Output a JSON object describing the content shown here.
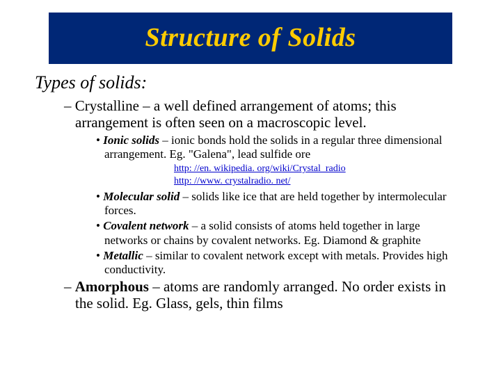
{
  "colors": {
    "title_bg": "#002776",
    "title_text": "#ffcc00",
    "body_text": "#000000",
    "link": "#0000cc",
    "page_bg": "#ffffff"
  },
  "title": "Structure of Solids",
  "heading": "Types of solids:",
  "crystalline": {
    "label": "Crystalline",
    "desc": " – a well defined arrangement of atoms; this arrangement is often seen on a macroscopic level."
  },
  "ionic": {
    "label": "Ionic solids",
    "desc": " – ionic bonds hold the solids in a regular three dimensional arrangement. Eg. \"Galena\", lead sulfide ore"
  },
  "links": {
    "l1": "http: //en. wikipedia. org/wiki/Crystal_radio",
    "l2": "http: //www. crystalradio. net/"
  },
  "molecular": {
    "label": "Molecular solid",
    "desc": " – solids like ice that are held together by intermolecular forces."
  },
  "covalent": {
    "label": "Covalent network",
    "desc": " – a solid consists of atoms held together in large networks or chains by covalent networks. Eg. Diamond & graphite"
  },
  "metallic": {
    "label": "Metallic",
    "desc": " – similar to covalent network except with metals. Provides high conductivity."
  },
  "amorphous": {
    "label": "Amorphous",
    "desc": " – atoms are randomly arranged.  No order exists in the solid. Eg. Glass, gels, thin films"
  }
}
